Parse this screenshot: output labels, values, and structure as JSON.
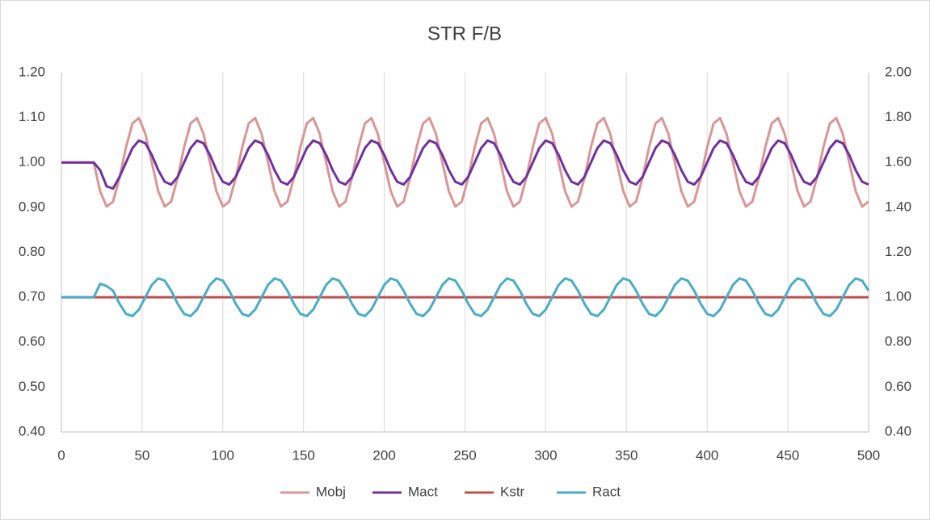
{
  "chart_data": {
    "type": "line",
    "title": "STR F/B",
    "x": [
      0,
      4,
      8,
      12,
      16,
      20,
      24,
      28,
      32,
      36,
      40,
      44,
      48,
      52,
      56,
      60,
      64,
      68,
      72,
      76,
      80,
      84,
      88,
      92,
      96,
      100,
      104,
      108,
      112,
      116,
      120,
      124,
      128,
      132,
      136,
      140,
      144,
      148,
      152,
      156,
      160,
      164,
      168,
      172,
      176,
      180,
      184,
      188,
      192,
      196,
      200,
      204,
      208,
      212,
      216,
      220,
      224,
      228,
      232,
      236,
      240,
      244,
      248,
      252,
      256,
      260,
      264,
      268,
      272,
      276,
      280,
      284,
      288,
      292,
      296,
      300,
      304,
      308,
      312,
      316,
      320,
      324,
      328,
      332,
      336,
      340,
      344,
      348,
      352,
      356,
      360,
      364,
      368,
      372,
      376,
      380,
      384,
      388,
      392,
      396,
      400,
      404,
      408,
      412,
      416,
      420,
      424,
      428,
      432,
      436,
      440,
      444,
      448,
      452,
      456,
      460,
      464,
      468,
      472,
      476,
      480,
      484,
      488,
      492,
      496,
      500
    ],
    "series": [
      {
        "name": "Mobj",
        "color": "#d99694",
        "axis": "y",
        "values": [
          1,
          1,
          1,
          1,
          1,
          1,
          0.936,
          0.902,
          0.913,
          0.966,
          1.034,
          1.087,
          1.099,
          1.064,
          1,
          0.936,
          0.902,
          0.913,
          0.966,
          1.034,
          1.087,
          1.099,
          1.064,
          1,
          0.936,
          0.902,
          0.913,
          0.966,
          1.034,
          1.087,
          1.099,
          1.064,
          1,
          0.936,
          0.902,
          0.913,
          0.966,
          1.034,
          1.087,
          1.099,
          1.064,
          1,
          0.936,
          0.902,
          0.913,
          0.966,
          1.034,
          1.087,
          1.099,
          1.064,
          1,
          0.936,
          0.902,
          0.913,
          0.966,
          1.034,
          1.087,
          1.099,
          1.064,
          1,
          0.936,
          0.902,
          0.913,
          0.966,
          1.034,
          1.087,
          1.099,
          1.064,
          1,
          0.936,
          0.902,
          0.913,
          0.966,
          1.034,
          1.087,
          1.099,
          1.064,
          1,
          0.936,
          0.902,
          0.913,
          0.966,
          1.034,
          1.087,
          1.099,
          1.064,
          1,
          0.936,
          0.902,
          0.913,
          0.966,
          1.034,
          1.087,
          1.099,
          1.064,
          1,
          0.936,
          0.902,
          0.913,
          0.966,
          1.034,
          1.087,
          1.099,
          1.064,
          1,
          0.936,
          0.902,
          0.913,
          0.966,
          1.034,
          1.087,
          1.099,
          1.064,
          1,
          0.936,
          0.902,
          0.913,
          0.966,
          1.034,
          1.087,
          1.099,
          1.064,
          1,
          0.936,
          0.902,
          0.913
        ]
      },
      {
        "name": "Mact",
        "color": "#7030a0",
        "axis": "y",
        "values": [
          1,
          1,
          1,
          1,
          1,
          1,
          0.983,
          0.947,
          0.942,
          0.968,
          1,
          1.032,
          1.049,
          1.043,
          1.017,
          0.983,
          0.957,
          0.951,
          0.968,
          1,
          1.032,
          1.049,
          1.043,
          1.017,
          0.983,
          0.957,
          0.951,
          0.968,
          1,
          1.032,
          1.049,
          1.043,
          1.017,
          0.983,
          0.957,
          0.951,
          0.968,
          1,
          1.032,
          1.049,
          1.043,
          1.017,
          0.983,
          0.957,
          0.951,
          0.968,
          1,
          1.032,
          1.049,
          1.043,
          1.017,
          0.983,
          0.957,
          0.951,
          0.968,
          1,
          1.032,
          1.049,
          1.043,
          1.017,
          0.983,
          0.957,
          0.951,
          0.968,
          1,
          1.032,
          1.049,
          1.043,
          1.017,
          0.983,
          0.957,
          0.951,
          0.968,
          1,
          1.032,
          1.049,
          1.043,
          1.017,
          0.983,
          0.957,
          0.951,
          0.968,
          1,
          1.032,
          1.049,
          1.043,
          1.017,
          0.983,
          0.957,
          0.951,
          0.968,
          1,
          1.032,
          1.049,
          1.043,
          1.017,
          0.983,
          0.957,
          0.951,
          0.968,
          1,
          1.032,
          1.049,
          1.043,
          1.017,
          0.983,
          0.957,
          0.951,
          0.968,
          1,
          1.032,
          1.049,
          1.043,
          1.017,
          0.983,
          0.957,
          0.951,
          0.968,
          1,
          1.032,
          1.049,
          1.043,
          1.017,
          0.983,
          0.957,
          0.951
        ]
      },
      {
        "name": "Kstr",
        "color": "#c0504d",
        "axis": "y2",
        "values": [
          1,
          1,
          1,
          1,
          1,
          1,
          1,
          1,
          1,
          1,
          1,
          1,
          1,
          1,
          1,
          1,
          1,
          1,
          1,
          1,
          1,
          1,
          1,
          1,
          1,
          1,
          1,
          1,
          1,
          1,
          1,
          1,
          1,
          1,
          1,
          1,
          1,
          1,
          1,
          1,
          1,
          1,
          1,
          1,
          1,
          1,
          1,
          1,
          1,
          1,
          1,
          1,
          1,
          1,
          1,
          1,
          1,
          1,
          1,
          1,
          1,
          1,
          1,
          1,
          1,
          1,
          1,
          1,
          1,
          1,
          1,
          1,
          1,
          1,
          1,
          1,
          1,
          1,
          1,
          1,
          1,
          1,
          1,
          1,
          1,
          1,
          1,
          1,
          1,
          1,
          1,
          1,
          1,
          1,
          1,
          1,
          1,
          1,
          1,
          1,
          1,
          1,
          1,
          1,
          1,
          1,
          1,
          1,
          1,
          1,
          1,
          1,
          1,
          1,
          1,
          1,
          1,
          1,
          1,
          1,
          1,
          1,
          1,
          1,
          1,
          1
        ]
      },
      {
        "name": "Ract",
        "color": "#4bacc6",
        "axis": "y2",
        "values": [
          1,
          1,
          1,
          1,
          1,
          1,
          1.06,
          1.05,
          1.029,
          0.971,
          0.926,
          0.916,
          0.945,
          1,
          1.055,
          1.084,
          1.074,
          1.029,
          0.971,
          0.926,
          0.916,
          0.945,
          1,
          1.055,
          1.084,
          1.074,
          1.029,
          0.971,
          0.926,
          0.916,
          0.945,
          1,
          1.055,
          1.084,
          1.074,
          1.029,
          0.971,
          0.926,
          0.916,
          0.945,
          1,
          1.055,
          1.084,
          1.074,
          1.029,
          0.971,
          0.926,
          0.916,
          0.945,
          1,
          1.055,
          1.084,
          1.074,
          1.029,
          0.971,
          0.926,
          0.916,
          0.945,
          1,
          1.055,
          1.084,
          1.074,
          1.029,
          0.971,
          0.926,
          0.916,
          0.945,
          1,
          1.055,
          1.084,
          1.074,
          1.029,
          0.971,
          0.926,
          0.916,
          0.945,
          1,
          1.055,
          1.084,
          1.074,
          1.029,
          0.971,
          0.926,
          0.916,
          0.945,
          1,
          1.055,
          1.084,
          1.074,
          1.029,
          0.971,
          0.926,
          0.916,
          0.945,
          1,
          1.055,
          1.084,
          1.074,
          1.029,
          0.971,
          0.926,
          0.916,
          0.945,
          1,
          1.055,
          1.084,
          1.074,
          1.029,
          0.971,
          0.926,
          0.916,
          0.945,
          1,
          1.055,
          1.084,
          1.074,
          1.029,
          0.971,
          0.926,
          0.916,
          0.945,
          1,
          1.055,
          1.084,
          1.074,
          1.029
        ]
      }
    ],
    "xlim": [
      0,
      500
    ],
    "xticks": [
      0,
      50,
      100,
      150,
      200,
      250,
      300,
      350,
      400,
      450,
      500
    ],
    "ylim": [
      0.4,
      1.2
    ],
    "yticks": [
      {
        "value": 0.4,
        "label": "0.40"
      },
      {
        "value": 0.5,
        "label": "0.50"
      },
      {
        "value": 0.6,
        "label": "0.60"
      },
      {
        "value": 0.7,
        "label": "0.70"
      },
      {
        "value": 0.8,
        "label": "0.80"
      },
      {
        "value": 0.9,
        "label": "0.90"
      },
      {
        "value": 1.0,
        "label": "1.00"
      },
      {
        "value": 1.1,
        "label": "1.10"
      },
      {
        "value": 1.2,
        "label": "1.20"
      }
    ],
    "y2lim": [
      0.4,
      2.0
    ],
    "y2ticks": [
      {
        "value": 0.4,
        "label": "0.40"
      },
      {
        "value": 0.6,
        "label": "0.60"
      },
      {
        "value": 0.8,
        "label": "0.80"
      },
      {
        "value": 1.0,
        "label": "1.00"
      },
      {
        "value": 1.2,
        "label": "1.20"
      },
      {
        "value": 1.4,
        "label": "1.40"
      },
      {
        "value": 1.6,
        "label": "1.60"
      },
      {
        "value": 1.8,
        "label": "1.80"
      },
      {
        "value": 2.0,
        "label": "2.00"
      }
    ],
    "grid": "x",
    "legend": "bottom"
  }
}
